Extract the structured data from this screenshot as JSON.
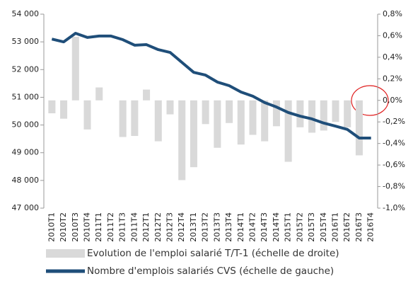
{
  "chart_data": {
    "type": "bar_line",
    "categories": [
      "2010T1",
      "2010T2",
      "2010T3",
      "2010T4",
      "2011T1",
      "2011T2",
      "2011T3",
      "2011T4",
      "2012T1",
      "2012T2",
      "2012T3",
      "2012T4",
      "2013T1",
      "2013T2",
      "2013T3",
      "2013T4",
      "2014T1",
      "2014T2",
      "2014T3",
      "2014T4",
      "2015T1",
      "2015T2",
      "2015T3",
      "2015T4",
      "2016T1",
      "2016T2",
      "2016T3",
      "2016T4"
    ],
    "series": [
      {
        "name": "Evolution de l'emploi salarié T/T-1 (échelle de droite)",
        "type": "bar",
        "axis": "y2",
        "color": "#d9d9d9",
        "values": [
          -0.12,
          -0.17,
          0.59,
          -0.27,
          0.12,
          0.0,
          -0.34,
          -0.33,
          0.1,
          -0.38,
          -0.13,
          -0.74,
          -0.62,
          -0.22,
          -0.44,
          -0.21,
          -0.41,
          -0.32,
          -0.38,
          -0.24,
          -0.57,
          -0.25,
          -0.3,
          -0.28,
          -0.2,
          -0.25,
          -0.51,
          0.0
        ]
      },
      {
        "name": "Nombre d'emplois salariés CVS (échelle de gauche)",
        "type": "line",
        "axis": "y",
        "color": "#1f4e79",
        "values": [
          53100,
          53000,
          53310,
          53160,
          53210,
          53210,
          53080,
          52880,
          52900,
          52720,
          52620,
          52260,
          51900,
          51800,
          51550,
          51420,
          51190,
          51040,
          50810,
          50650,
          50450,
          50320,
          50220,
          50070,
          49960,
          49840,
          49530,
          49530
        ]
      }
    ],
    "ylim": [
      47000,
      54000
    ],
    "yticks": [
      {
        "value": 47000,
        "label": "47 000"
      },
      {
        "value": 48000,
        "label": "48 000"
      },
      {
        "value": 49000,
        "label": "49 000"
      },
      {
        "value": 50000,
        "label": "50 000"
      },
      {
        "value": 51000,
        "label": "51 000"
      },
      {
        "value": 52000,
        "label": "52 000"
      },
      {
        "value": 53000,
        "label": "53 000"
      },
      {
        "value": 54000,
        "label": "54 000"
      }
    ],
    "y2lim": [
      -1.0,
      0.8
    ],
    "y2ticks": [
      {
        "value": -1.0,
        "label": "-1,0%"
      },
      {
        "value": -0.8,
        "label": "-0,8%"
      },
      {
        "value": -0.6,
        "label": "-0,6%"
      },
      {
        "value": -0.4,
        "label": "-0,4%"
      },
      {
        "value": -0.2,
        "label": "-0,2%"
      },
      {
        "value": 0.0,
        "label": "0,0%"
      },
      {
        "value": 0.2,
        "label": "0,2%"
      },
      {
        "value": 0.4,
        "label": "0,4%"
      },
      {
        "value": 0.6,
        "label": "0,6%"
      },
      {
        "value": 0.8,
        "label": "0,8%"
      }
    ],
    "grid": false,
    "legend": "bottom"
  }
}
